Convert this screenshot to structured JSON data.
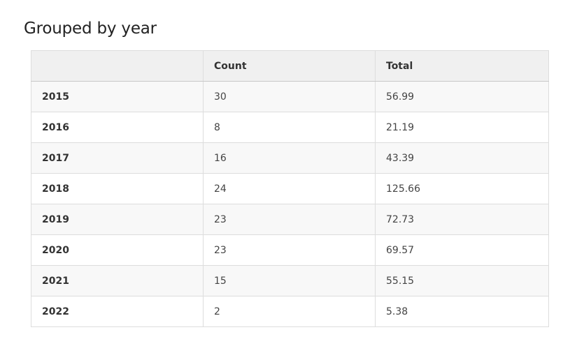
{
  "page": {
    "title": "Grouped by year"
  },
  "table": {
    "headers": [
      "",
      "Count",
      "Total"
    ],
    "rows": [
      {
        "year": "2015",
        "count": "30",
        "total": "56.99"
      },
      {
        "year": "2016",
        "count": "8",
        "total": "21.19"
      },
      {
        "year": "2017",
        "count": "16",
        "total": "43.39"
      },
      {
        "year": "2018",
        "count": "24",
        "total": "125.66"
      },
      {
        "year": "2019",
        "count": "23",
        "total": "72.73"
      },
      {
        "year": "2020",
        "count": "23",
        "total": "69.57"
      },
      {
        "year": "2021",
        "count": "15",
        "total": "55.15"
      },
      {
        "year": "2022",
        "count": "2",
        "total": "5.38"
      }
    ]
  },
  "colors": {
    "header_bg": "#f0f0f0",
    "stripe_bg": "#f8f8f8",
    "border": "#dddddd"
  }
}
